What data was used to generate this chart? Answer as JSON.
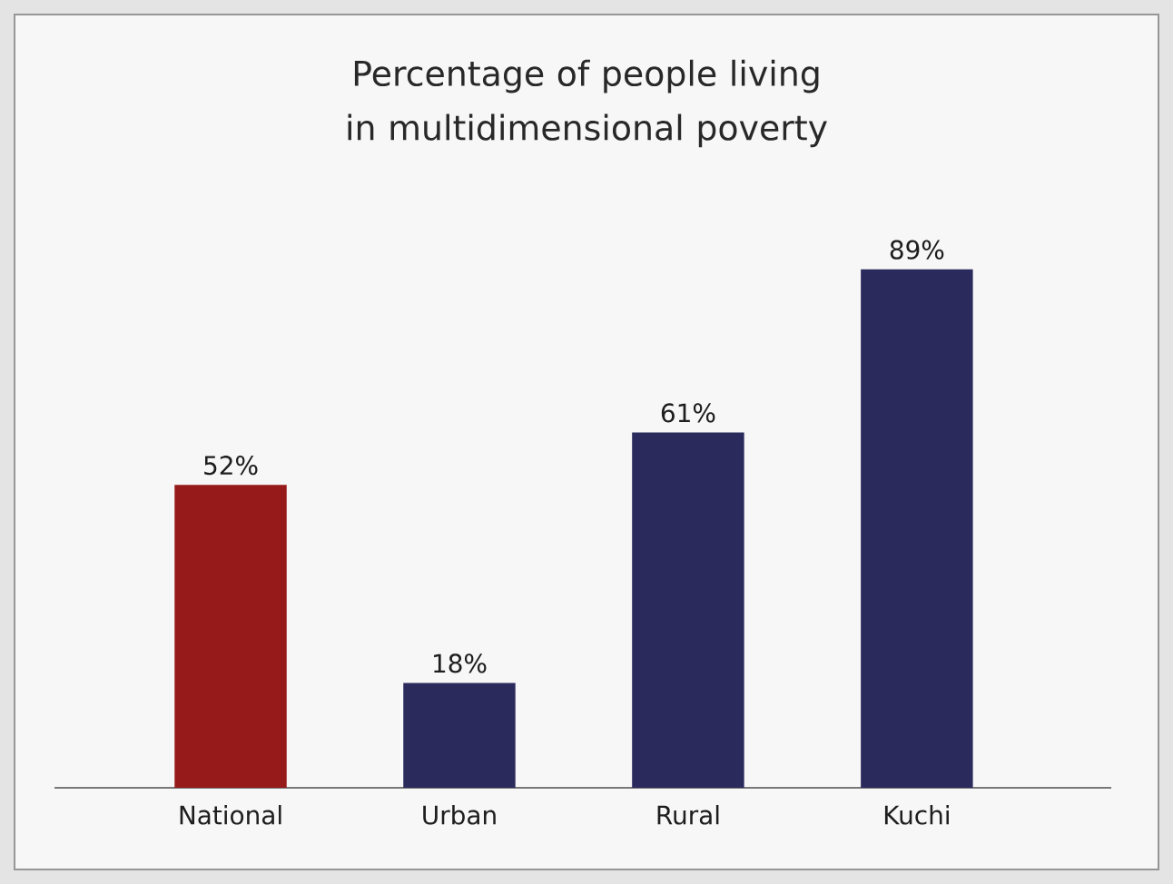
{
  "chart_data": {
    "type": "bar",
    "title": "Percentage of people living in multidimensional poverty",
    "categories": [
      "National",
      "Urban",
      "Rural",
      "Kuchi"
    ],
    "values": [
      52,
      18,
      61,
      89
    ],
    "colors": [
      "#961a1a",
      "#2b2a5c",
      "#2b2a5c",
      "#2b2a5c"
    ],
    "value_labels": [
      "52%",
      "18%",
      "61%",
      "89%"
    ]
  }
}
